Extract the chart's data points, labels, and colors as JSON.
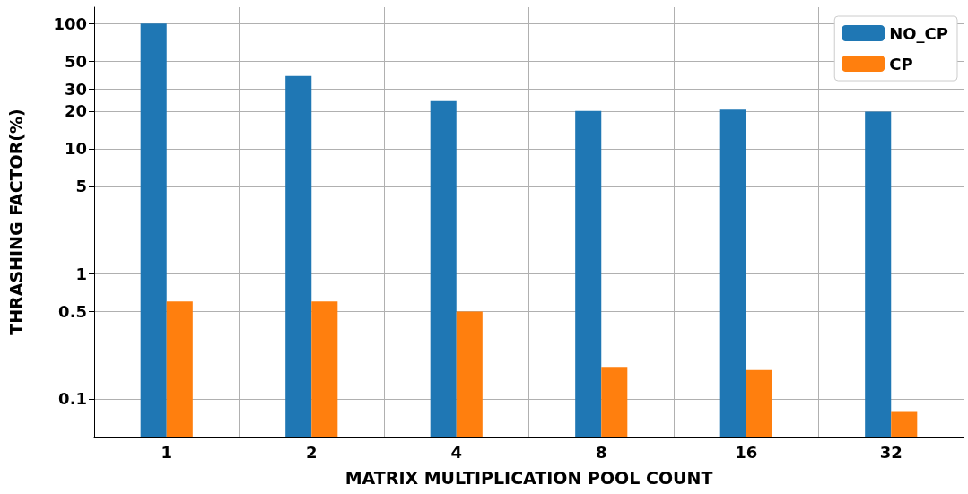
{
  "chart_data": {
    "type": "bar",
    "xlabel": "MATRIX MULTIPLICATION POOL COUNT",
    "ylabel": "THRASHING FACTOR(%)",
    "categories": [
      "1",
      "2",
      "4",
      "8",
      "16",
      "32"
    ],
    "series": [
      {
        "name": "NO_CP",
        "color": "#1f77b4",
        "values": [
          100,
          38,
          24,
          20,
          20.5,
          19.8
        ]
      },
      {
        "name": "CP",
        "color": "#ff7f0e",
        "values": [
          0.6,
          0.6,
          0.5,
          0.18,
          0.17,
          0.08
        ]
      }
    ],
    "log": "y",
    "ylim": [
      0.05,
      135
    ],
    "yticks": [
      0.1,
      0.5,
      1,
      5,
      10,
      20,
      30,
      50,
      100
    ],
    "grid": true,
    "legend": "top right"
  }
}
